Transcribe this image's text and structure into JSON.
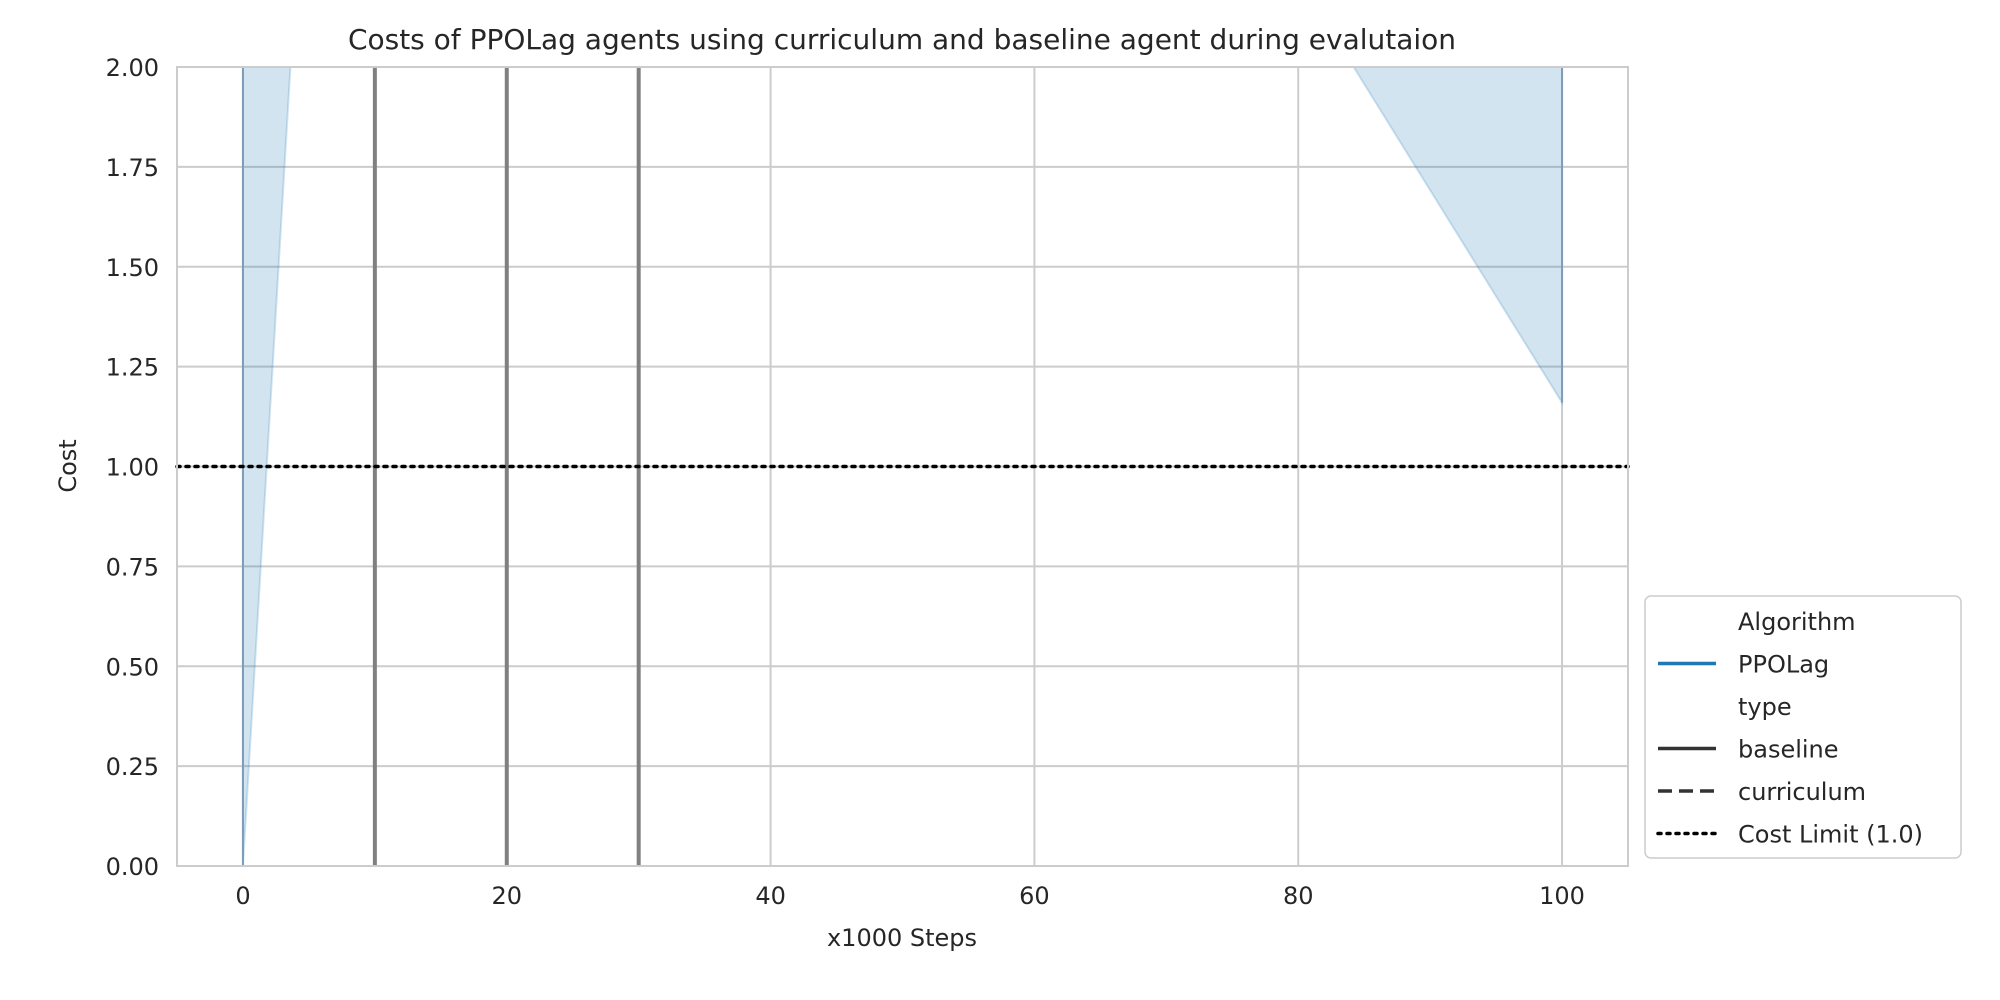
{
  "chart_data": {
    "type": "line",
    "title": "Costs of PPOLag agents using curriculum and baseline agent during evalutaion",
    "xlabel": "x1000 Steps",
    "ylabel": "Cost",
    "xlim": [
      -5,
      105
    ],
    "ylim": [
      0,
      2
    ],
    "xticks": [
      0,
      20,
      40,
      60,
      80,
      100
    ],
    "xtick_labels": [
      "0",
      "20",
      "40",
      "60",
      "80",
      "100"
    ],
    "yticks": [
      0,
      0.25,
      0.5,
      0.75,
      1.0,
      1.25,
      1.5,
      1.75,
      2.0
    ],
    "ytick_labels": [
      "0.00",
      "0.25",
      "0.50",
      "0.75",
      "1.00",
      "1.25",
      "1.50",
      "1.75",
      "2.00"
    ],
    "grid": true,
    "series": [
      {
        "name": "PPOLag",
        "type_label": "baseline",
        "color": "#1f77b4",
        "line": "vertical segments at each evaluation step; out of axis range",
        "x": [
          0,
          100
        ],
        "band_lower": [
          0.0,
          1.16
        ],
        "band_upper": [
          2.0,
          2.0
        ],
        "band_extent": [
          {
            "x": [
              0,
              3.6
            ],
            "lower": [
              0.0,
              2.0
            ],
            "upper": [
              2.0,
              2.0
            ]
          },
          {
            "x": [
              84.2,
              100
            ],
            "lower": [
              2.0,
              1.16
            ],
            "upper": [
              2.0,
              2.0
            ]
          }
        ]
      }
    ],
    "vertical_lines": {
      "x": [
        10,
        20,
        30
      ],
      "color": "#808080"
    },
    "cost_limit": {
      "value": 1.0,
      "label": "Cost Limit (1.0)",
      "color": "#000000",
      "style": "dotted"
    },
    "legend": {
      "placement": "outside-right-bottom",
      "entries": [
        {
          "label": "Algorithm",
          "kind": "header"
        },
        {
          "label": "PPOLag",
          "kind": "line",
          "style": "solid",
          "color": "#1f77b4"
        },
        {
          "label": "type",
          "kind": "header"
        },
        {
          "label": "baseline",
          "kind": "line",
          "style": "solid",
          "color": "#333333"
        },
        {
          "label": "curriculum",
          "kind": "line",
          "style": "dashed",
          "color": "#333333"
        },
        {
          "label": "Cost Limit (1.0)",
          "kind": "line",
          "style": "dotted",
          "color": "#000000"
        }
      ]
    },
    "colors": {
      "grid": "#cccccc",
      "frame": "#cccccc",
      "band": "#1f77b4",
      "vline": "#808080"
    }
  }
}
